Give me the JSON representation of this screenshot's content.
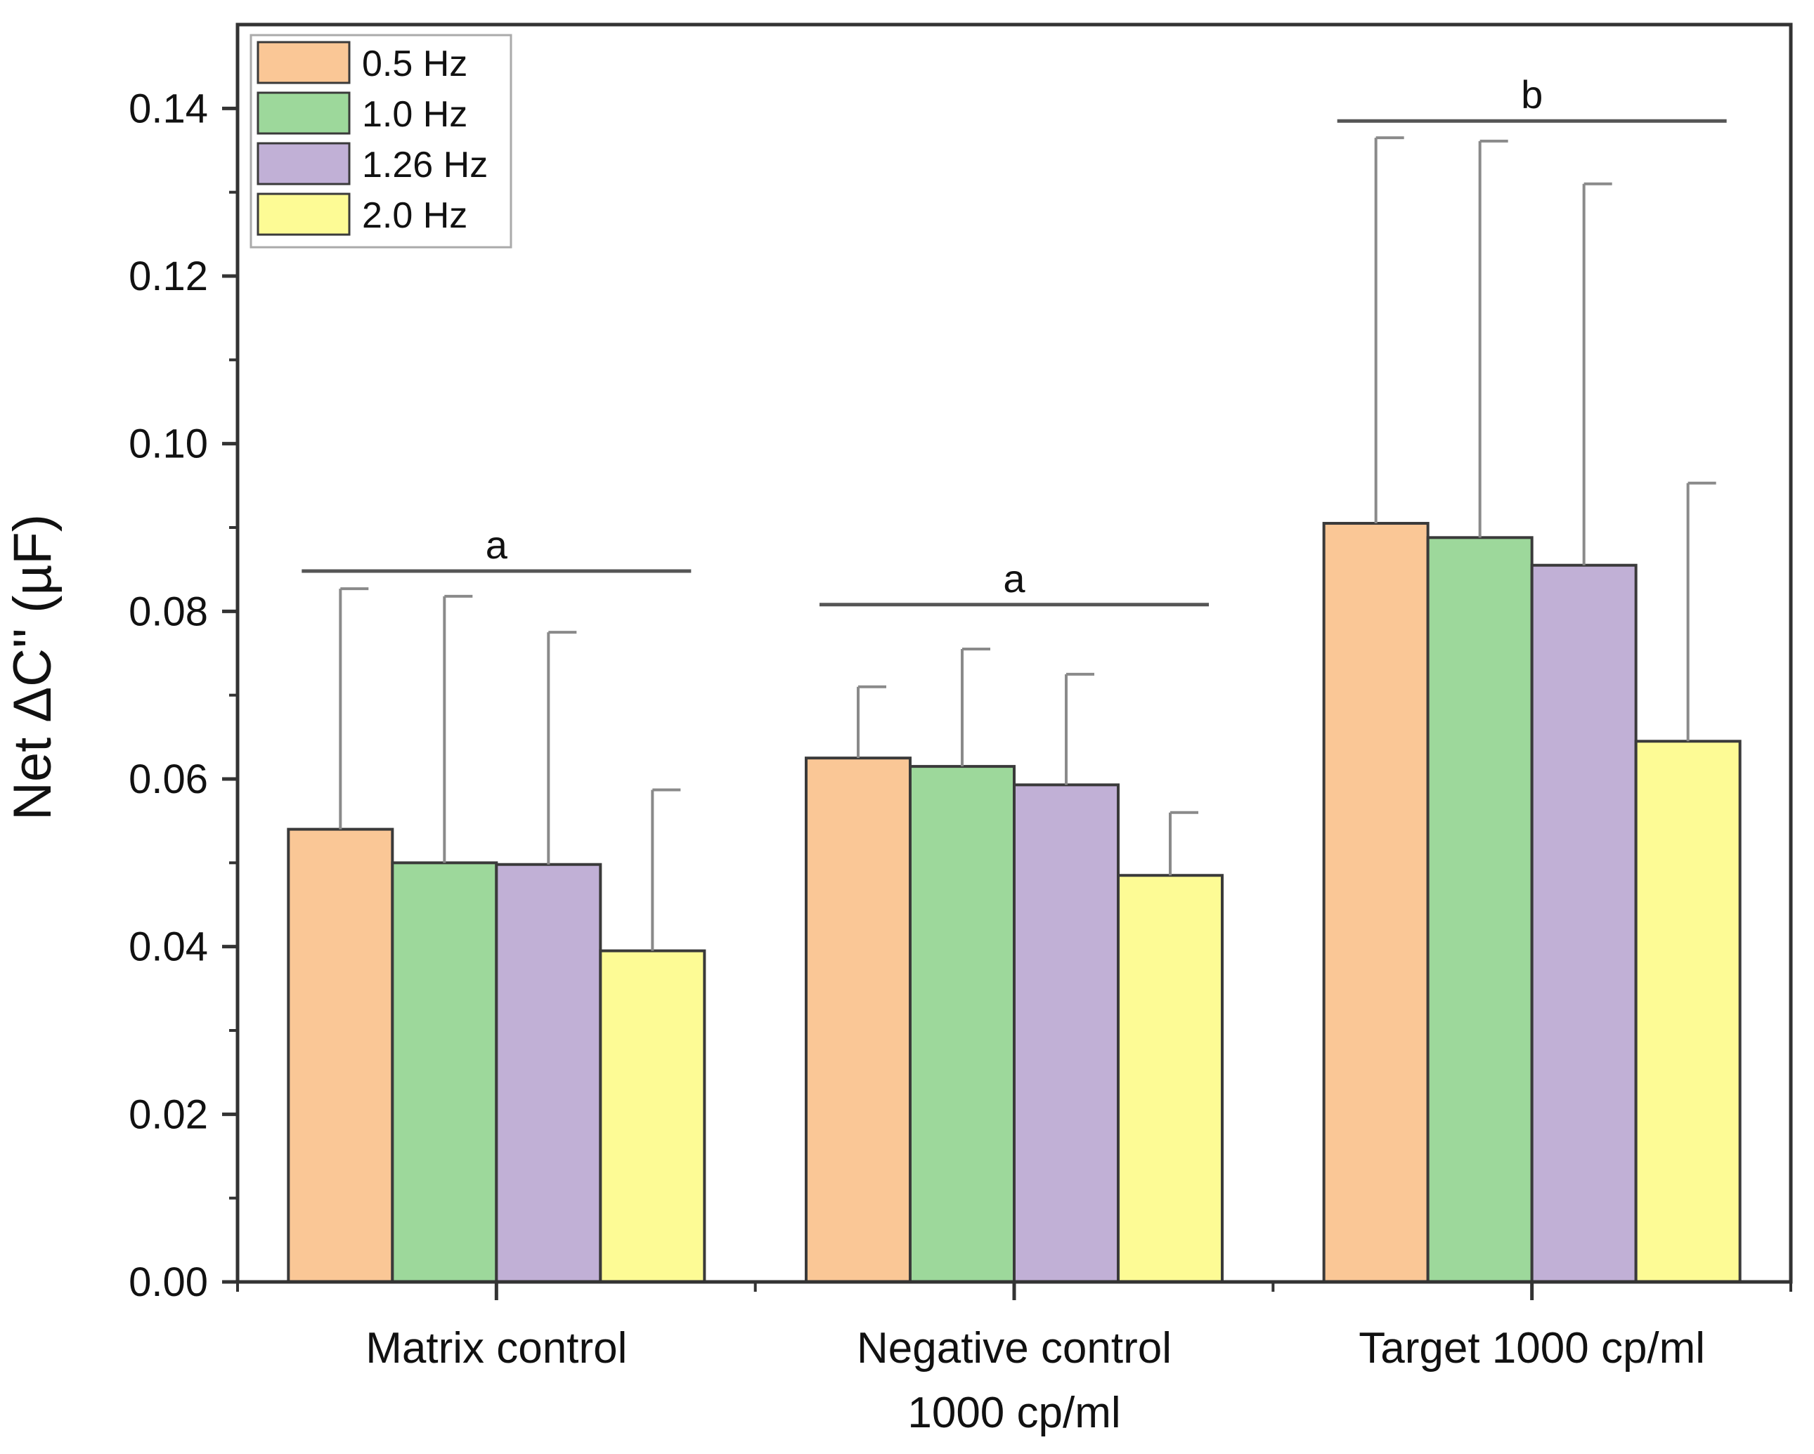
{
  "chart_data": {
    "type": "bar",
    "title": "",
    "xlabel": "",
    "ylabel": "Net ΔC'' (µF)",
    "ylim": [
      0,
      0.15
    ],
    "yticks": [
      "0.00",
      "0.02",
      "0.04",
      "0.06",
      "0.08",
      "0.10",
      "0.12",
      "0.14"
    ],
    "ytick_values": [
      0,
      0.02,
      0.04,
      0.06,
      0.08,
      0.1,
      0.12,
      0.14
    ],
    "grid": false,
    "legend_position": "top-left",
    "categories": [
      [
        "Matrix control"
      ],
      [
        "Negative control",
        "1000 cp/ml"
      ],
      [
        "Target 1000 cp/ml"
      ]
    ],
    "series": [
      {
        "name": "0.5 Hz",
        "color": "#fac796",
        "values": [
          0.054,
          0.0625,
          0.0905
        ],
        "errors": [
          0.0287,
          0.0085,
          0.046
        ]
      },
      {
        "name": "1.0 Hz",
        "color": "#9dd89b",
        "values": [
          0.05,
          0.0615,
          0.0888
        ],
        "errors": [
          0.0318,
          0.014,
          0.0473
        ]
      },
      {
        "name": "1.26 Hz",
        "color": "#c1b0d6",
        "values": [
          0.0498,
          0.0593,
          0.0855
        ],
        "errors": [
          0.0277,
          0.0132,
          0.0455
        ]
      },
      {
        "name": "2.0 Hz",
        "color": "#fdfb95",
        "values": [
          0.0395,
          0.0485,
          0.0645
        ],
        "errors": [
          0.0192,
          0.0075,
          0.0308
        ]
      }
    ],
    "annotations": [
      {
        "text": "a",
        "category_index": 0,
        "y": 0.0848
      },
      {
        "text": "a",
        "category_index": 1,
        "y": 0.0808
      },
      {
        "text": "b",
        "category_index": 2,
        "y": 0.1385
      }
    ]
  }
}
